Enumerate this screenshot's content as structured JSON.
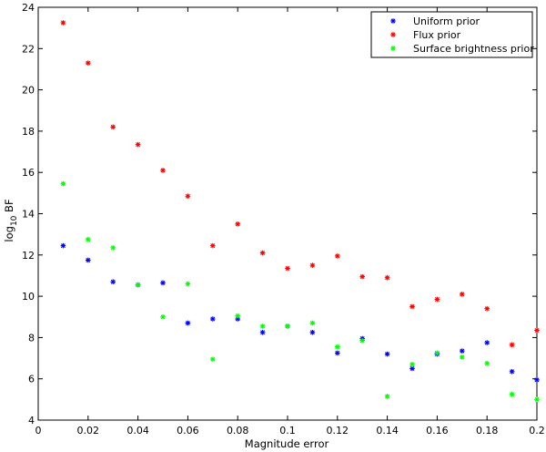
{
  "chart_data": {
    "type": "scatter",
    "title": "",
    "xlabel": "Magnitude error",
    "ylabel_main": "log",
    "ylabel_sub": "10",
    "ylabel_tail": " BF",
    "xlim": [
      0,
      0.2
    ],
    "ylim": [
      4,
      24
    ],
    "xticks": [
      0,
      0.02,
      0.04,
      0.06,
      0.08,
      0.1,
      0.12,
      0.14,
      0.16,
      0.18,
      0.2
    ],
    "xtick_labels": [
      "0",
      "0.02",
      "0.04",
      "0.06",
      "0.08",
      "0.1",
      "0.12",
      "0.14",
      "0.16",
      "0.18",
      "0.2"
    ],
    "yticks": [
      4,
      6,
      8,
      10,
      12,
      14,
      16,
      18,
      20,
      22,
      24
    ],
    "ytick_labels": [
      "4",
      "6",
      "8",
      "10",
      "12",
      "14",
      "16",
      "18",
      "20",
      "22",
      "24"
    ],
    "grid": false,
    "legend_position": "top-right",
    "marker": "*",
    "x": [
      0.01,
      0.02,
      0.03,
      0.04,
      0.05,
      0.06,
      0.07,
      0.08,
      0.09,
      0.1,
      0.11,
      0.12,
      0.13,
      0.14,
      0.15,
      0.16,
      0.17,
      0.18,
      0.19,
      0.2
    ],
    "series": [
      {
        "name": "Uniform prior",
        "color": "#0000ff",
        "values": [
          12.45,
          11.75,
          10.7,
          10.55,
          10.65,
          8.7,
          8.9,
          8.9,
          8.25,
          8.55,
          8.25,
          7.25,
          7.95,
          7.2,
          6.5,
          7.2,
          7.35,
          7.75,
          6.35,
          5.95
        ]
      },
      {
        "name": "Flux prior",
        "color": "#ff0000",
        "values": [
          23.25,
          21.3,
          18.2,
          17.35,
          16.1,
          14.85,
          12.45,
          13.5,
          12.1,
          11.35,
          11.5,
          11.95,
          10.95,
          10.9,
          9.5,
          9.85,
          10.1,
          9.4,
          7.65,
          8.35
        ]
      },
      {
        "name": "Surface brightness prior",
        "color": "#00ff00",
        "values": [
          15.45,
          12.75,
          12.35,
          10.55,
          9.0,
          10.6,
          6.95,
          9.05,
          8.55,
          8.55,
          8.7,
          7.55,
          7.85,
          5.15,
          6.7,
          7.25,
          7.05,
          6.75,
          5.25,
          5.0
        ]
      }
    ]
  }
}
